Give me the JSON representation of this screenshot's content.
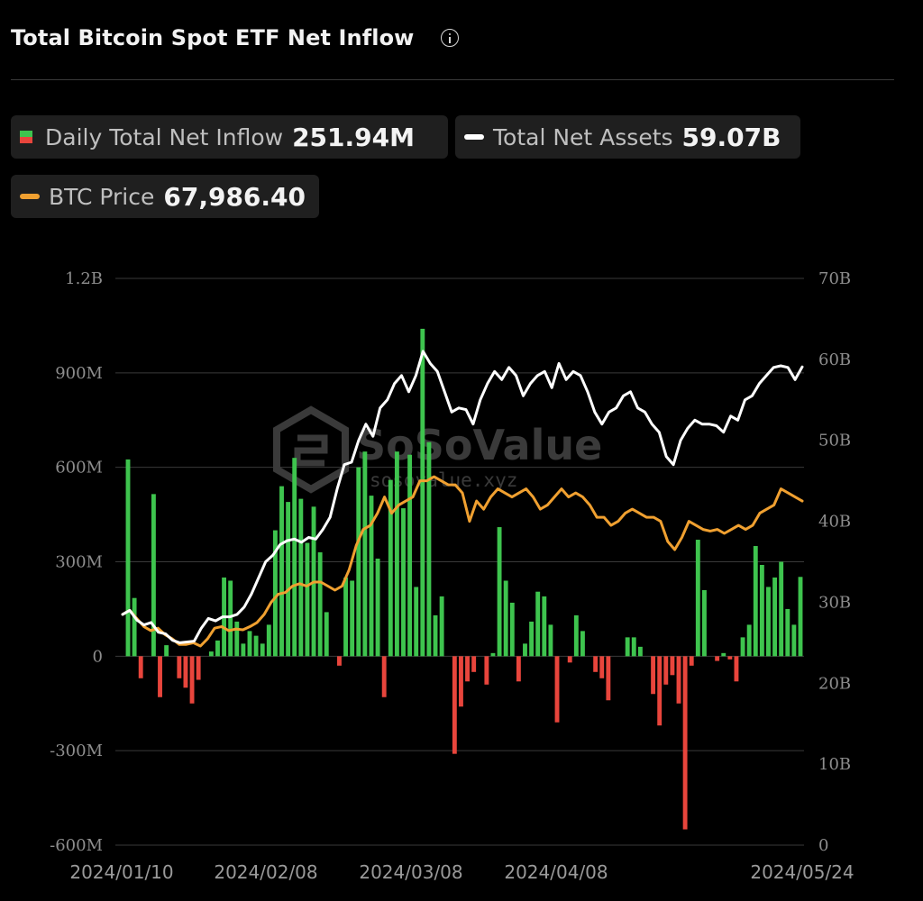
{
  "header": {
    "title": "Total Bitcoin Spot ETF Net Inflow"
  },
  "legend": [
    {
      "label": "Daily Total Net Inflow",
      "value": "251.94M",
      "icon": "bar-icon"
    },
    {
      "label": "Total Net Assets",
      "value": "59.07B",
      "color": "#ffffff",
      "icon": "line-icon"
    },
    {
      "label": "BTC Price",
      "value": "67,986.40",
      "color": "#f0a030",
      "icon": "line-icon"
    }
  ],
  "watermark": {
    "brand": "SoSoValue",
    "url": "sosovalue.xyz"
  },
  "colors": {
    "positive": "#3ec44e",
    "negative": "#e8453c",
    "assets_line": "#ffffff",
    "price_line": "#f0a030",
    "background": "#000000",
    "gridline": "#3a3a3a"
  },
  "chart_data": {
    "type": "bar",
    "title": "Total Bitcoin Spot ETF Net Inflow",
    "left_axis": {
      "ticks": [
        "1.2B",
        "900M",
        "600M",
        "300M",
        "0",
        "-300M",
        "-600M"
      ],
      "range": [
        -600,
        1200
      ],
      "unit": "M"
    },
    "right_axis": {
      "ticks": [
        "70B",
        "60B",
        "50B",
        "40B",
        "30B",
        "20B",
        "10B",
        "0"
      ],
      "range": [
        0,
        70
      ],
      "unit": "B"
    },
    "x_ticks": [
      "2024/01/10",
      "2024/02/08",
      "2024/03/08",
      "2024/04/08",
      "2024/05/24"
    ],
    "grid": true,
    "series": [
      {
        "name": "Daily Total Net Inflow",
        "type": "bar",
        "axis": "left",
        "values": [
          625,
          185,
          -70,
          0,
          515,
          -130,
          35,
          0,
          -70,
          -100,
          -150,
          -75,
          0,
          15,
          50,
          250,
          240,
          110,
          40,
          80,
          65,
          40,
          100,
          400,
          540,
          490,
          630,
          500,
          360,
          475,
          330,
          140,
          0,
          -30,
          250,
          240,
          600,
          650,
          510,
          310,
          -130,
          560,
          650,
          470,
          640,
          220,
          1040,
          680,
          130,
          190,
          0,
          -310,
          -160,
          -80,
          -50,
          0,
          -90,
          10,
          410,
          240,
          170,
          -80,
          40,
          110,
          205,
          190,
          100,
          -210,
          0,
          -20,
          130,
          80,
          0,
          -50,
          -70,
          -140,
          0,
          0,
          60,
          60,
          30,
          0,
          -120,
          -220,
          -90,
          -60,
          -150,
          -550,
          -30,
          370,
          210,
          0,
          -15,
          10,
          -10,
          -80,
          60,
          100,
          350,
          290,
          220,
          250,
          300,
          150,
          100,
          251.94
        ]
      },
      {
        "name": "Total Net Assets",
        "type": "line",
        "axis": "right",
        "values": [
          28.5,
          29.0,
          27.8,
          27.2,
          27.5,
          26.3,
          26.1,
          25.3,
          25.0,
          25.1,
          25.2,
          26.8,
          28.0,
          27.7,
          28.2,
          28.2,
          28.5,
          29.4,
          31.0,
          33.0,
          35.0,
          35.8,
          37.1,
          37.6,
          37.8,
          37.4,
          38.0,
          37.8,
          39.0,
          40.5,
          44.0,
          47.0,
          47.3,
          50.0,
          52.0,
          50.5,
          54.0,
          55.0,
          57.0,
          58.0,
          56.0,
          58.0,
          61.0,
          59.5,
          58.5,
          56.0,
          53.5,
          54.0,
          53.8,
          52.0,
          55.0,
          57.0,
          58.5,
          57.5,
          59.0,
          58.0,
          55.5,
          57.0,
          58.0,
          58.5,
          56.5,
          59.5,
          57.5,
          58.5,
          58.0,
          56.0,
          53.5,
          52.0,
          53.5,
          54.0,
          55.5,
          56.0,
          54.0,
          53.5,
          52.0,
          51.0,
          48.0,
          47.0,
          50.0,
          51.5,
          52.5,
          52.0,
          52.0,
          51.8,
          51.0,
          53.0,
          52.5,
          55.0,
          55.5,
          57.0,
          58.0,
          59.0,
          59.2,
          59.0,
          57.5,
          59.07
        ]
      },
      {
        "name": "BTC Price",
        "type": "line",
        "axis": "right",
        "values": [
          28.5,
          29.0,
          28.0,
          27.0,
          26.5,
          26.8,
          26.0,
          25.5,
          24.8,
          24.8,
          25.0,
          24.6,
          25.5,
          26.8,
          27.0,
          26.5,
          26.7,
          26.6,
          27.0,
          27.5,
          28.5,
          30.0,
          31.0,
          31.2,
          32.0,
          32.3,
          32.0,
          32.5,
          32.5,
          32.0,
          31.5,
          32.0,
          34.0,
          37.0,
          39.0,
          39.5,
          41.0,
          43.0,
          41.0,
          42.0,
          42.5,
          43.0,
          45.0,
          45.0,
          45.5,
          45.0,
          44.5,
          44.5,
          43.5,
          40.0,
          42.5,
          41.5,
          43.0,
          44.0,
          43.5,
          43.0,
          43.5,
          44.0,
          43.0,
          41.5,
          42.0,
          43.0,
          44.0,
          43.0,
          43.5,
          43.0,
          42.0,
          40.5,
          40.5,
          39.5,
          40.0,
          41.0,
          41.5,
          41.0,
          40.5,
          40.5,
          40.0,
          37.5,
          36.5,
          38.0,
          40.0,
          39.5,
          39.0,
          38.8,
          39.0,
          38.5,
          39.0,
          39.5,
          39.0,
          39.5,
          41.0,
          41.5,
          42.0,
          44.0,
          43.5,
          43.0,
          42.5
        ]
      }
    ]
  }
}
